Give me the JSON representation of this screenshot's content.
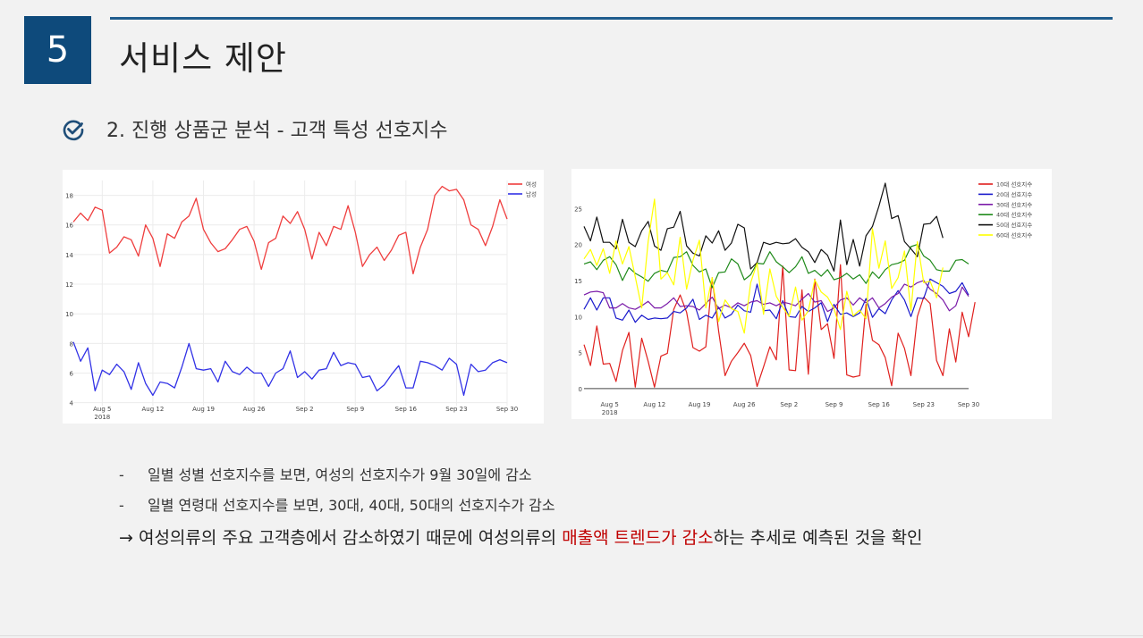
{
  "header": {
    "section_number": "5",
    "title": "서비스 제안"
  },
  "subtitle": "2. 진행 상품군 분석 - 고객 특성 선호지수",
  "colors": {
    "accent": "#0e4a7b",
    "highlight": "#c00000"
  },
  "icons": {
    "subtitle_icon": "check-circle-icon"
  },
  "bullets": [
    {
      "dash": "-",
      "text": "일별 성별 선호지수를 보면, 여성의 선호지수가 9월 30일에 감소"
    },
    {
      "dash": "-",
      "text": "일별 연령대 선호지수를 보면, 30대, 40대, 50대의 선호지수가 감소"
    }
  ],
  "conclusion": {
    "prefix": "→ 여성의류의 주요 고객층에서 감소하였기 때문에 여성의류의 ",
    "highlight": "매출액 트렌드가 감소",
    "suffix": "하는 추세로 예측된 것을 확인"
  },
  "chart_data": [
    {
      "type": "line",
      "x_start": "2018-08-01",
      "x_end": "2018-09-30",
      "xticks": [
        {
          "date": "2018-08-05",
          "label": "Aug 5",
          "sub": "2018"
        },
        {
          "date": "2018-08-12",
          "label": "Aug 12"
        },
        {
          "date": "2018-08-19",
          "label": "Aug 19"
        },
        {
          "date": "2018-08-26",
          "label": "Aug 26"
        },
        {
          "date": "2018-09-02",
          "label": "Sep 2"
        },
        {
          "date": "2018-09-09",
          "label": "Sep 9"
        },
        {
          "date": "2018-09-16",
          "label": "Sep 16"
        },
        {
          "date": "2018-09-23",
          "label": "Sep 23"
        },
        {
          "date": "2018-09-30",
          "label": "Sep 30"
        }
      ],
      "ylim": [
        3.8,
        19
      ],
      "yticks": [
        4,
        6,
        8,
        10,
        12,
        14,
        16,
        18
      ],
      "grid": true,
      "legend": "top-right",
      "series": [
        {
          "name": "여성",
          "color": "#ef3e3e",
          "values": [
            16.2,
            16.8,
            16.3,
            17.2,
            17.0,
            14.1,
            14.5,
            15.2,
            15.0,
            13.9,
            16.0,
            15.1,
            13.2,
            15.4,
            15.1,
            16.2,
            16.6,
            17.8,
            15.7,
            14.8,
            14.2,
            14.4,
            15.0,
            15.7,
            15.9,
            14.9,
            13.0,
            14.8,
            15.1,
            16.6,
            16.1,
            16.9,
            15.7,
            13.7,
            15.5,
            14.6,
            15.9,
            15.7,
            17.3,
            15.5,
            13.2,
            14.0,
            14.5,
            13.6,
            14.3,
            15.3,
            15.5,
            12.7,
            14.5,
            15.7,
            18.0,
            18.6,
            18.3,
            18.4,
            17.7,
            16.0,
            15.7,
            14.6,
            15.9,
            17.7,
            16.4
          ]
        },
        {
          "name": "남성",
          "color": "#3232e6",
          "values": [
            8.1,
            6.8,
            7.7,
            4.8,
            6.2,
            5.9,
            6.6,
            6.1,
            4.9,
            6.7,
            5.3,
            4.5,
            5.4,
            5.3,
            5.0,
            6.4,
            8.0,
            6.3,
            6.2,
            6.3,
            5.4,
            6.8,
            6.1,
            5.9,
            6.4,
            6.0,
            6.0,
            5.1,
            6.0,
            6.3,
            7.5,
            5.7,
            6.1,
            5.6,
            6.2,
            6.3,
            7.4,
            6.5,
            6.7,
            6.6,
            5.7,
            5.8,
            4.8,
            5.2,
            5.9,
            6.5,
            5.0,
            5.0,
            6.8,
            6.7,
            6.5,
            6.2,
            7.0,
            6.6,
            4.5,
            6.6,
            6.1,
            6.2,
            6.7,
            6.9,
            6.7
          ]
        }
      ]
    },
    {
      "type": "line",
      "x_start": "2018-08-01",
      "x_end": "2018-09-30",
      "xticks": [
        {
          "date": "2018-08-05",
          "label": "Aug 5",
          "sub": "2018"
        },
        {
          "date": "2018-08-12",
          "label": "Aug 12"
        },
        {
          "date": "2018-08-19",
          "label": "Aug 19"
        },
        {
          "date": "2018-08-26",
          "label": "Aug 26"
        },
        {
          "date": "2018-09-02",
          "label": "Sep 2"
        },
        {
          "date": "2018-09-09",
          "label": "Sep 9"
        },
        {
          "date": "2018-09-16",
          "label": "Sep 16"
        },
        {
          "date": "2018-09-23",
          "label": "Sep 23"
        },
        {
          "date": "2018-09-30",
          "label": "Sep 30"
        }
      ],
      "ylim": [
        -1,
        29
      ],
      "yticks": [
        0,
        5,
        10,
        15,
        20,
        25
      ],
      "grid": false,
      "legend": "top-right",
      "series": [
        {
          "name": "10대 선호지수",
          "color": "#e0201e",
          "values": [
            6.1,
            3.2,
            8.7,
            3.4,
            3.5,
            1.0,
            5.3,
            7.8,
            0.2,
            7.0,
            3.8,
            0.2,
            4.5,
            4.9,
            11.0,
            13.0,
            10.6,
            5.7,
            5.2,
            5.8,
            15.4,
            8.0,
            1.8,
            3.8,
            5.0,
            6.3,
            4.6,
            0.3,
            3.0,
            5.8,
            4.0,
            17.0,
            2.6,
            2.5,
            13.7,
            2.0,
            15.2,
            8.2,
            9.0,
            4.2,
            17.2,
            1.9,
            1.6,
            1.8,
            11.7,
            6.7,
            6.1,
            4.3,
            0.4,
            7.7,
            5.6,
            1.8,
            10.0,
            12.7,
            11.8,
            3.9,
            1.8,
            8.3,
            3.7,
            10.6,
            7.2,
            12.0
          ]
        },
        {
          "name": "20대 선호지수",
          "color": "#1a1acc",
          "values": [
            11.0,
            12.6,
            10.9,
            12.6,
            12.6,
            9.8,
            9.5,
            10.9,
            9.2,
            10.2,
            9.6,
            9.8,
            9.7,
            9.8,
            10.7,
            10.5,
            11.2,
            12.4,
            9.6,
            10.2,
            9.8,
            11.3,
            9.8,
            10.3,
            11.6,
            10.8,
            10.6,
            14.5,
            10.8,
            10.9,
            9.7,
            12.2,
            10.0,
            9.9,
            11.4,
            10.7,
            11.2,
            11.9,
            9.3,
            11.7,
            10.3,
            10.5,
            10.0,
            10.5,
            12.5,
            9.9,
            11.1,
            10.4,
            12.3,
            13.6,
            12.3,
            10.0,
            12.6,
            12.5,
            15.2,
            14.7,
            14.2,
            13.2,
            13.5,
            14.7,
            13.0
          ]
        },
        {
          "name": "30대 선호지수",
          "color": "#7a1aa8",
          "values": [
            13.0,
            13.4,
            13.5,
            13.3,
            11.2,
            11.2,
            11.8,
            11.2,
            11.0,
            11.5,
            12.1,
            11.2,
            11.2,
            11.8,
            12.6,
            11.4,
            11.5,
            11.4,
            10.9,
            11.8,
            12.7,
            11.1,
            11.6,
            11.2,
            11.9,
            11.5,
            12.0,
            12.2,
            11.7,
            11.9,
            11.5,
            12.0,
            11.8,
            11.5,
            12.4,
            13.2,
            12.0,
            12.2,
            10.7,
            11.2,
            12.3,
            12.6,
            11.6,
            12.6,
            11.9,
            12.6,
            11.2,
            11.8,
            12.7,
            13.2,
            14.5,
            14.1,
            14.7,
            15.0,
            13.8,
            13.2,
            12.3,
            10.8,
            11.5,
            14.1,
            12.8
          ]
        },
        {
          "name": "40대 선호지수",
          "color": "#1f8a1a",
          "values": [
            17.3,
            17.6,
            16.5,
            17.8,
            18.3,
            17.2,
            15.0,
            16.8,
            16.0,
            15.5,
            14.9,
            16.0,
            16.4,
            16.2,
            18.2,
            18.3,
            19.0,
            17.1,
            16.2,
            16.6,
            14.0,
            16.1,
            16.2,
            18.0,
            17.3,
            15.1,
            15.8,
            17.4,
            17.3,
            19.0,
            17.6,
            16.9,
            16.1,
            16.9,
            18.3,
            16.0,
            16.4,
            15.6,
            16.5,
            15.1,
            15.4,
            16.0,
            15.2,
            15.8,
            14.6,
            16.2,
            15.3,
            16.5,
            17.2,
            17.4,
            17.8,
            19.7,
            20.0,
            18.4,
            17.8,
            16.5,
            16.3,
            16.3,
            17.8,
            17.9,
            17.3
          ]
        },
        {
          "name": "50대 선호지수",
          "color": "#111111",
          "values": [
            22.5,
            20.5,
            23.8,
            20.3,
            20.3,
            19.4,
            23.5,
            20.3,
            19.7,
            21.9,
            23.2,
            19.8,
            19.2,
            22.2,
            22.4,
            24.6,
            19.8,
            18.8,
            18.4,
            21.2,
            20.2,
            21.9,
            19.2,
            20.2,
            22.8,
            22.3,
            16.6,
            17.5,
            20.3,
            20.0,
            20.3,
            20.1,
            20.2,
            20.8,
            19.6,
            19.0,
            17.5,
            19.3,
            18.5,
            16.3,
            23.4,
            17.2,
            20.7,
            17.0,
            21.2,
            22.5,
            25.3,
            28.5,
            23.6,
            24.0,
            20.4,
            19.4,
            18.3,
            22.8,
            22.9,
            23.9,
            20.9
          ]
        },
        {
          "name": "60대 선호지수",
          "color": "#ffff00",
          "values": [
            18.0,
            19.3,
            17.1,
            19.4,
            16.0,
            20.5,
            17.3,
            19.7,
            15.5,
            11.2,
            20.4,
            26.3,
            15.2,
            16.1,
            14.4,
            21.0,
            13.8,
            17.8,
            20.6,
            11.2,
            15.4,
            9.3,
            12.3,
            11.1,
            10.7,
            7.7,
            14.7,
            17.4,
            10.3,
            16.6,
            12.8,
            11.3,
            10.0,
            14.1,
            9.5,
            10.8,
            15.1,
            13.4,
            12.7,
            11.1,
            8.2,
            13.5,
            10.1,
            10.9,
            9.7,
            22.2,
            16.7,
            20.5,
            13.9,
            15.4,
            19.1,
            10.8,
            20.4,
            14.7,
            14.9,
            12.6,
            16.8
          ]
        }
      ]
    }
  ]
}
